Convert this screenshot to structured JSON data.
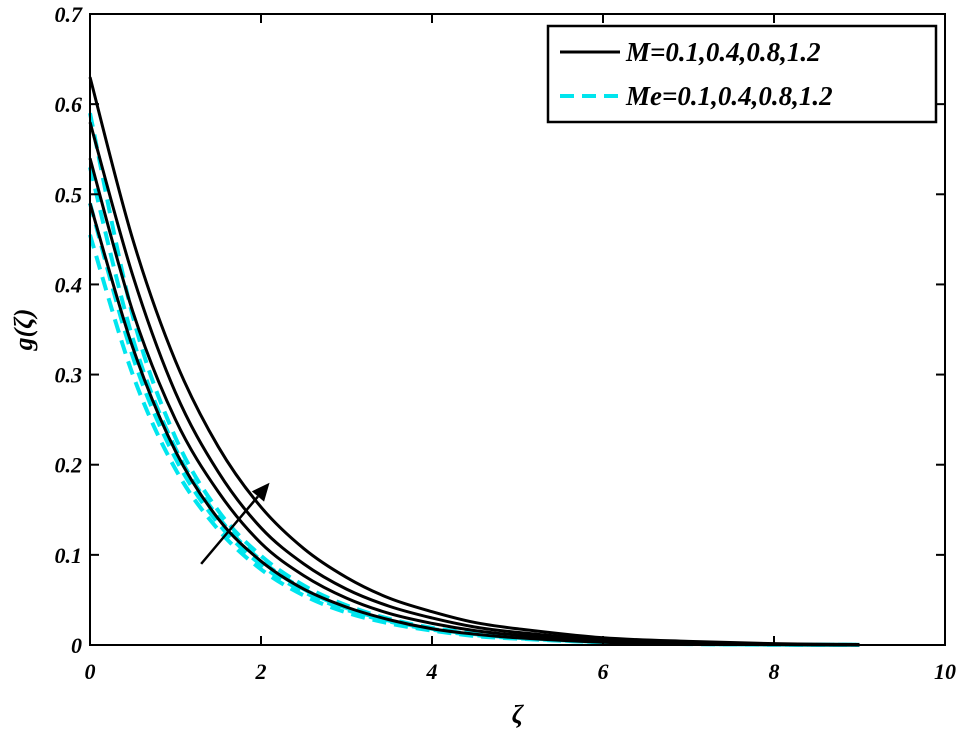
{
  "chart_data": {
    "type": "line",
    "xlabel": "ζ",
    "ylabel": "g(ζ)",
    "xlim": [
      0,
      10
    ],
    "ylim": [
      0,
      0.7
    ],
    "xticks": [
      0,
      2,
      4,
      6,
      8,
      10
    ],
    "yticks": [
      0,
      0.1,
      0.2,
      0.3,
      0.4,
      0.5,
      0.6,
      0.7
    ],
    "xtick_labels": [
      "0",
      "2",
      "4",
      "6",
      "8",
      "10"
    ],
    "ytick_labels": [
      "0",
      "0.1",
      "0.2",
      "0.3",
      "0.4",
      "0.5",
      "0.6",
      "0.7"
    ],
    "grid": false,
    "legend_position": "top-right",
    "legend": [
      {
        "label": "M=0.1,0.4,0.8,1.2",
        "color": "#000000",
        "style": "solid"
      },
      {
        "label": "Me=0.1,0.4,0.8,1.2",
        "color": "#00e5ee",
        "style": "dashed"
      }
    ],
    "series": [
      {
        "group": "M",
        "param": 0.1,
        "color": "#000000",
        "style": "solid",
        "x": [
          0,
          0.5,
          1,
          1.5,
          2,
          2.5,
          3,
          3.5,
          4,
          4.5,
          5,
          6,
          7,
          8,
          9
        ],
        "y": [
          0.49,
          0.33,
          0.215,
          0.14,
          0.093,
          0.062,
          0.042,
          0.028,
          0.018,
          0.012,
          0.008,
          0.003,
          0.001,
          0.0004,
          0.0001
        ]
      },
      {
        "group": "M",
        "param": 0.4,
        "color": "#000000",
        "style": "solid",
        "x": [
          0,
          0.5,
          1,
          1.5,
          2,
          2.5,
          3,
          3.5,
          4,
          4.5,
          5,
          6,
          7,
          8,
          9
        ],
        "y": [
          0.54,
          0.37,
          0.25,
          0.17,
          0.113,
          0.077,
          0.052,
          0.035,
          0.024,
          0.016,
          0.011,
          0.005,
          0.002,
          0.0007,
          0.0002
        ]
      },
      {
        "group": "M",
        "param": 0.8,
        "color": "#000000",
        "style": "solid",
        "x": [
          0,
          0.5,
          1,
          1.5,
          2,
          2.5,
          3,
          3.5,
          4,
          4.5,
          5,
          6,
          7,
          8,
          9
        ],
        "y": [
          0.58,
          0.41,
          0.28,
          0.192,
          0.13,
          0.09,
          0.062,
          0.043,
          0.03,
          0.02,
          0.014,
          0.006,
          0.003,
          0.001,
          0.0003
        ]
      },
      {
        "group": "M",
        "param": 1.2,
        "color": "#000000",
        "style": "solid",
        "x": [
          0,
          0.5,
          1,
          1.5,
          2,
          2.5,
          3,
          3.5,
          4,
          4.5,
          5,
          6,
          7,
          8,
          9
        ],
        "y": [
          0.63,
          0.45,
          0.315,
          0.22,
          0.153,
          0.107,
          0.075,
          0.052,
          0.037,
          0.025,
          0.018,
          0.008,
          0.004,
          0.0015,
          0.0005
        ]
      },
      {
        "group": "Me",
        "param": 0.1,
        "color": "#00e5ee",
        "style": "dashed",
        "x": [
          0,
          0.5,
          1,
          1.5,
          2,
          2.5,
          3,
          3.5,
          4,
          4.5,
          5,
          6,
          7,
          8,
          9
        ],
        "y": [
          0.455,
          0.3,
          0.195,
          0.128,
          0.084,
          0.055,
          0.036,
          0.024,
          0.016,
          0.01,
          0.007,
          0.003,
          0.001,
          0.0003,
          0.0001
        ]
      },
      {
        "group": "Me",
        "param": 0.4,
        "color": "#00e5ee",
        "style": "dashed",
        "x": [
          0,
          0.5,
          1,
          1.5,
          2,
          2.5,
          3,
          3.5,
          4,
          4.5,
          5,
          6,
          7,
          8,
          9
        ],
        "y": [
          0.49,
          0.32,
          0.207,
          0.135,
          0.089,
          0.059,
          0.039,
          0.026,
          0.017,
          0.011,
          0.0075,
          0.003,
          0.0012,
          0.0004,
          0.0001
        ]
      },
      {
        "group": "Me",
        "param": 0.8,
        "color": "#00e5ee",
        "style": "dashed",
        "x": [
          0,
          0.5,
          1,
          1.5,
          2,
          2.5,
          3,
          3.5,
          4,
          4.5,
          5,
          6,
          7,
          8,
          9
        ],
        "y": [
          0.53,
          0.34,
          0.218,
          0.142,
          0.094,
          0.062,
          0.041,
          0.027,
          0.018,
          0.012,
          0.008,
          0.0033,
          0.0013,
          0.0005,
          0.0002
        ]
      },
      {
        "group": "Me",
        "param": 1.2,
        "color": "#00e5ee",
        "style": "dashed",
        "x": [
          0,
          0.5,
          1,
          1.5,
          2,
          2.5,
          3,
          3.5,
          4,
          4.5,
          5,
          6,
          7,
          8,
          9
        ],
        "y": [
          0.59,
          0.365,
          0.23,
          0.149,
          0.099,
          0.066,
          0.044,
          0.029,
          0.019,
          0.013,
          0.0085,
          0.0035,
          0.0014,
          0.0005,
          0.0002
        ]
      }
    ],
    "annotations": [
      {
        "type": "arrow",
        "from": [
          1.3,
          0.09
        ],
        "to": [
          2.1,
          0.18
        ],
        "color": "#000000"
      }
    ]
  }
}
